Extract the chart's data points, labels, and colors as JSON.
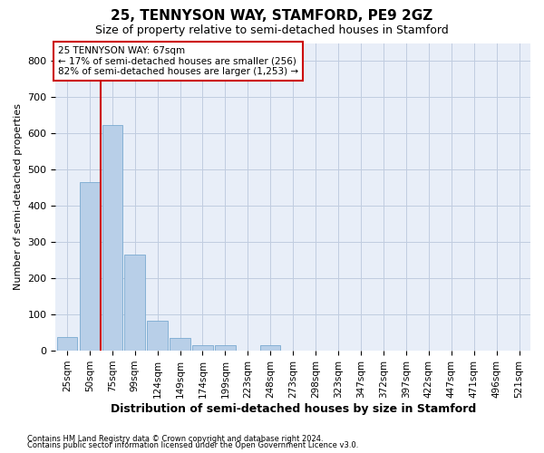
{
  "title": "25, TENNYSON WAY, STAMFORD, PE9 2GZ",
  "subtitle": "Size of property relative to semi-detached houses in Stamford",
  "xlabel": "Distribution of semi-detached houses by size in Stamford",
  "ylabel": "Number of semi-detached properties",
  "categories": [
    "25sqm",
    "50sqm",
    "75sqm",
    "99sqm",
    "124sqm",
    "149sqm",
    "174sqm",
    "199sqm",
    "223sqm",
    "248sqm",
    "273sqm",
    "298sqm",
    "323sqm",
    "347sqm",
    "372sqm",
    "397sqm",
    "422sqm",
    "447sqm",
    "471sqm",
    "496sqm",
    "521sqm"
  ],
  "values": [
    38,
    465,
    623,
    265,
    82,
    35,
    15,
    15,
    0,
    15,
    0,
    0,
    0,
    0,
    0,
    0,
    0,
    0,
    0,
    0,
    0
  ],
  "bar_color": "#b8cfe8",
  "bar_edge_color": "#7aaad0",
  "property_line_x": 1.5,
  "annotation_text": "25 TENNYSON WAY: 67sqm\n← 17% of semi-detached houses are smaller (256)\n82% of semi-detached houses are larger (1,253) →",
  "ylim": [
    0,
    850
  ],
  "yticks": [
    0,
    100,
    200,
    300,
    400,
    500,
    600,
    700,
    800
  ],
  "footnote1": "Contains HM Land Registry data © Crown copyright and database right 2024.",
  "footnote2": "Contains public sector information licensed under the Open Government Licence v3.0.",
  "background_color": "#e8eef8",
  "grid_color": "#c0cce0",
  "title_fontsize": 11,
  "subtitle_fontsize": 9,
  "xlabel_fontsize": 9,
  "ylabel_fontsize": 8,
  "annotation_box_color": "#ffffff",
  "annotation_box_edge": "#cc0000",
  "red_line_color": "#cc0000",
  "tick_fontsize": 7.5,
  "ytick_fontsize": 8
}
